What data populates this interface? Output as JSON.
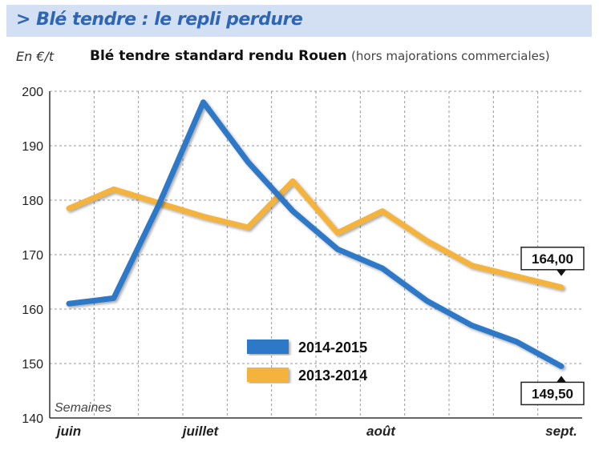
{
  "header": {
    "title": "> Blé tendre : le repli perdure"
  },
  "unit_label": "En €/t",
  "subtitle": {
    "main": "Blé tendre standard rendu Rouen",
    "note": "(hors majorations commerciales)"
  },
  "chart_data": {
    "type": "line",
    "title": "Blé tendre standard rendu Rouen",
    "subtitle": "(hors majorations commerciales)",
    "ylabel": "En €/t",
    "xlabel": "Semaines",
    "ylim": [
      140,
      200
    ],
    "yticks": [
      140,
      150,
      160,
      170,
      180,
      190,
      200
    ],
    "x_tick_labels": [
      "juin",
      "juillet",
      "août",
      "sept."
    ],
    "x": [
      0,
      1,
      2,
      3,
      4,
      5,
      6,
      7,
      8,
      9,
      10,
      11
    ],
    "grid": true,
    "legend_position": "bottom-center",
    "series": [
      {
        "name": "2014-2015",
        "color": "#2e78c8",
        "values": [
          161,
          162,
          179,
          198,
          187,
          178,
          171,
          167.5,
          161.5,
          157,
          154,
          149.5
        ],
        "end_label": "149,50"
      },
      {
        "name": "2013-2014",
        "color": "#f3b33d",
        "values": [
          178.5,
          182,
          179.5,
          177,
          175,
          183.5,
          174,
          178,
          172.5,
          168,
          166,
          164
        ],
        "end_label": "164,00"
      }
    ]
  }
}
